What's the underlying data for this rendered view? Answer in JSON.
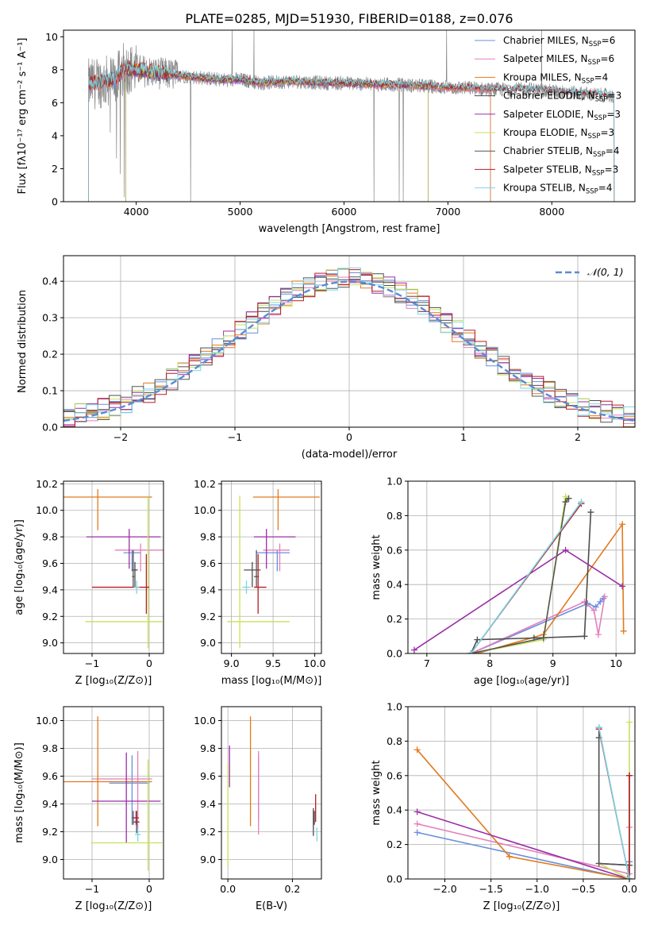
{
  "figure": {
    "title": "PLATE=0285, MJD=51930, FIBERID=0188, z=0.076"
  },
  "colors": {
    "series": [
      "#6a8fdc",
      "#e47fbd",
      "#e07b1f",
      "#4d4d4d",
      "#9a2fa6",
      "#c7e25a",
      "#555555",
      "#b41f24",
      "#7dd6e6"
    ],
    "data": "#888888",
    "gaussian": "#5b8ad6",
    "grid": "#b0b0b0"
  },
  "chart_data": [
    {
      "id": "spectrum",
      "type": "line",
      "title": "PLATE=0285, MJD=51930, FIBERID=0188, z=0.076",
      "xlabel": "wavelength [Angstrom, rest frame]",
      "ylabel": "Flux [fλ10⁻¹⁷ erg cm⁻² s⁻¹ A⁻¹]",
      "xlim": [
        3300,
        8800
      ],
      "ylim": [
        0,
        10.4
      ],
      "xticks": [
        4000,
        5000,
        6000,
        7000,
        8000
      ],
      "yticks": [
        0,
        2,
        4,
        6,
        8,
        10
      ],
      "grid": false,
      "legend_position": "right",
      "legend": [
        {
          "label": "Chabrier MILES, N",
          "sub": "SSP",
          "suffix": "=6"
        },
        {
          "label": "Salpeter MILES, N",
          "sub": "SSP",
          "suffix": "=6"
        },
        {
          "label": "Kroupa MILES, N",
          "sub": "SSP",
          "suffix": "=4"
        },
        {
          "label": "Chabrier ELODIE, N",
          "sub": "SSP",
          "suffix": "=3"
        },
        {
          "label": "Salpeter ELODIE, N",
          "sub": "SSP",
          "suffix": "=3"
        },
        {
          "label": "Kroupa ELODIE, N",
          "sub": "SSP",
          "suffix": "=3"
        },
        {
          "label": "Chabrier STELIB, N",
          "sub": "SSP",
          "suffix": "=4"
        },
        {
          "label": "Salpeter STELIB, N",
          "sub": "SSP",
          "suffix": "=3"
        },
        {
          "label": "Kroupa STELIB, N",
          "sub": "SSP",
          "suffix": "=4"
        }
      ],
      "continuum": {
        "x": [
          3550,
          3700,
          3800,
          3900,
          4000,
          4200,
          4500,
          4800,
          5000,
          5200,
          5500,
          5800,
          6000,
          6300,
          6500,
          6800,
          7000,
          7200,
          7400,
          7600,
          7800,
          8000,
          8200,
          8400,
          8600
        ],
        "y": [
          7.1,
          7.3,
          7.4,
          8.1,
          8.0,
          7.8,
          7.6,
          7.4,
          7.4,
          7.2,
          7.3,
          7.2,
          7.2,
          7.1,
          7.1,
          7.0,
          6.9,
          6.9,
          6.8,
          6.8,
          6.8,
          6.7,
          6.6,
          6.5,
          6.4
        ]
      },
      "model_ranges": [
        [
          3540,
          7410
        ],
        [
          3540,
          7410
        ],
        [
          3540,
          7410
        ],
        [
          3900,
          6810
        ],
        [
          3900,
          6810
        ],
        [
          3900,
          6810
        ],
        [
          3540,
          8600
        ],
        [
          3540,
          8600
        ],
        [
          3540,
          8600
        ]
      ],
      "data_range": [
        3540,
        8600
      ]
    },
    {
      "id": "residuals",
      "type": "histogram",
      "xlabel": "(data-model)/error",
      "ylabel": "Normed distribution",
      "xlim": [
        -2.5,
        2.5
      ],
      "ylim": [
        0,
        0.47
      ],
      "xticks": [
        -2,
        -1,
        0,
        1,
        2
      ],
      "yticks": [
        0.0,
        0.1,
        0.2,
        0.3,
        0.4
      ],
      "grid": true,
      "legend_position": "upper right",
      "gaussian_label": "𝒩(0, 1)",
      "bin_width": 0.1,
      "bin_start": -2.5
    },
    {
      "id": "age-vs-Z",
      "type": "errorbar",
      "xlabel": "Z [log₁₀(Z/Z⊙)]",
      "ylabel": "age  [log₁₀(age/yr)]",
      "xlim": [
        -1.5,
        0.25
      ],
      "ylim": [
        8.92,
        10.22
      ],
      "xticks": [
        -1,
        0
      ],
      "yticks": [
        9.0,
        9.2,
        9.4,
        9.6,
        9.8,
        10.0,
        10.2
      ],
      "grid": true,
      "points": [
        {
          "series": 0,
          "x": -0.3,
          "xerr": [
            0.15,
            0.15
          ],
          "y": 9.68,
          "yerr": [
            0.14,
            0.02
          ]
        },
        {
          "series": 1,
          "x": -0.15,
          "xerr": [
            0.45,
            0.45
          ],
          "y": 9.7,
          "yerr": [
            0.16,
            0.05
          ]
        },
        {
          "series": 2,
          "x": -0.9,
          "xerr": [
            0.6,
            0.95
          ],
          "y": 10.1,
          "yerr": [
            0.25,
            0.06
          ]
        },
        {
          "series": 3,
          "x": -0.25,
          "xerr": [
            0.05,
            0.05
          ],
          "y": 9.55,
          "yerr": [
            0.13,
            0.06
          ]
        },
        {
          "series": 4,
          "x": -0.35,
          "xerr": [
            0.75,
            0.55
          ],
          "y": 9.8,
          "yerr": [
            0.24,
            0.06
          ]
        },
        {
          "series": 5,
          "x": -0.02,
          "xerr": [
            1.1,
            0.25
          ],
          "y": 9.16,
          "yerr": [
            0.2,
            0.95
          ]
        },
        {
          "series": 6,
          "x": -0.28,
          "xerr": [
            0.02,
            0.02
          ],
          "y": 9.5,
          "yerr": [
            0.08,
            0.2
          ]
        },
        {
          "series": 7,
          "x": -0.05,
          "xerr": [
            0.95,
            0.05
          ],
          "y": 9.42,
          "yerr": [
            0.2,
            0.25
          ]
        },
        {
          "series": 8,
          "x": -0.22,
          "xerr": [
            0.05,
            0.05
          ],
          "y": 9.42,
          "yerr": [
            0.05,
            0.05
          ]
        }
      ]
    },
    {
      "id": "age-vs-mass",
      "type": "errorbar",
      "xlabel": "mass [log₁₀(M/M⊙)]",
      "ylabel": "",
      "xlim": [
        8.88,
        10.08
      ],
      "ylim": [
        8.92,
        10.22
      ],
      "xticks": [
        9.0,
        9.5,
        10.0
      ],
      "yticks": [
        9.0,
        9.2,
        9.4,
        9.6,
        9.8,
        10.0,
        10.2
      ],
      "grid": true,
      "points": [
        {
          "series": 0,
          "x": 9.55,
          "xerr": [
            0.25,
            0.15
          ],
          "y": 9.68,
          "yerr": [
            0.14,
            0.02
          ]
        },
        {
          "series": 1,
          "x": 9.58,
          "xerr": [
            0.2,
            0.12
          ],
          "y": 9.7,
          "yerr": [
            0.16,
            0.05
          ]
        },
        {
          "series": 2,
          "x": 9.56,
          "xerr": [
            0.3,
            0.5
          ],
          "y": 10.1,
          "yerr": [
            0.25,
            0.06
          ]
        },
        {
          "series": 3,
          "x": 9.25,
          "xerr": [
            0.1,
            0.1
          ],
          "y": 9.55,
          "yerr": [
            0.13,
            0.06
          ]
        },
        {
          "series": 4,
          "x": 9.42,
          "xerr": [
            0.15,
            0.35
          ],
          "y": 9.8,
          "yerr": [
            0.24,
            0.06
          ]
        },
        {
          "series": 5,
          "x": 9.1,
          "xerr": [
            0.15,
            0.6
          ],
          "y": 9.16,
          "yerr": [
            0.2,
            0.95
          ]
        },
        {
          "series": 6,
          "x": 9.3,
          "xerr": [
            0.03,
            0.03
          ],
          "y": 9.5,
          "yerr": [
            0.08,
            0.2
          ]
        },
        {
          "series": 7,
          "x": 9.32,
          "xerr": [
            0.05,
            0.1
          ],
          "y": 9.42,
          "yerr": [
            0.2,
            0.25
          ]
        },
        {
          "series": 8,
          "x": 9.18,
          "xerr": [
            0.05,
            0.05
          ],
          "y": 9.42,
          "yerr": [
            0.05,
            0.05
          ]
        }
      ]
    },
    {
      "id": "weight-vs-age",
      "type": "line",
      "xlabel": "age  [log₁₀(age/yr)]",
      "ylabel": "mass weight",
      "xlim": [
        6.7,
        10.3
      ],
      "ylim": [
        0,
        1.0
      ],
      "xticks": [
        7,
        8,
        9,
        10
      ],
      "yticks": [
        0.0,
        0.2,
        0.4,
        0.6,
        0.8,
        1.0
      ],
      "grid": true,
      "series": [
        {
          "x": [
            7.7,
            9.55,
            9.68,
            9.75,
            9.8
          ],
          "y": [
            0.0,
            0.29,
            0.27,
            0.3,
            0.32
          ]
        },
        {
          "x": [
            7.7,
            9.5,
            9.65,
            9.72,
            9.82
          ],
          "y": [
            0.0,
            0.3,
            0.25,
            0.11,
            0.33
          ]
        },
        {
          "x": [
            7.8,
            8.85,
            10.1,
            10.12
          ],
          "y": [
            0.0,
            0.11,
            0.75,
            0.13
          ]
        },
        {
          "x": [
            7.7,
            7.8,
            8.7,
            9.5,
            9.6
          ],
          "y": [
            0.0,
            0.08,
            0.09,
            0.1,
            0.82
          ]
        },
        {
          "x": [
            6.8,
            9.2,
            10.1
          ],
          "y": [
            0.02,
            0.6,
            0.39
          ]
        },
        {
          "x": [
            7.7,
            8.85,
            9.2,
            9.22
          ],
          "y": [
            0.0,
            0.08,
            0.91,
            0.9
          ]
        },
        {
          "x": [
            7.7,
            8.85,
            9.2,
            9.25
          ],
          "y": [
            0.0,
            0.09,
            0.88,
            0.9
          ]
        },
        {
          "x": [
            7.7,
            9.45
          ],
          "y": [
            0.0,
            0.87
          ]
        },
        {
          "x": [
            7.7,
            9.45
          ],
          "y": [
            0.0,
            0.88
          ]
        }
      ]
    },
    {
      "id": "mass-vs-Z",
      "type": "errorbar",
      "xlabel": "Z [log₁₀(Z/Z⊙)]",
      "ylabel": "mass [log₁₀(M/M⊙)]",
      "xlim": [
        -1.5,
        0.25
      ],
      "ylim": [
        8.86,
        10.1
      ],
      "xticks": [
        -1,
        0
      ],
      "yticks": [
        9.0,
        9.2,
        9.4,
        9.6,
        9.8,
        10.0
      ],
      "grid": true,
      "points": [
        {
          "series": 0,
          "x": -0.3,
          "xerr": [
            0.4,
            0.3
          ],
          "y": 9.55,
          "yerr": [
            0.3,
            0.2
          ]
        },
        {
          "series": 1,
          "x": -0.2,
          "xerr": [
            0.8,
            0.25
          ],
          "y": 9.58,
          "yerr": [
            0.4,
            0.2
          ]
        },
        {
          "series": 2,
          "x": -0.9,
          "xerr": [
            0.6,
            0.95
          ],
          "y": 9.56,
          "yerr": [
            0.32,
            0.47
          ]
        },
        {
          "series": 3,
          "x": -0.22,
          "xerr": [
            0.05,
            0.05
          ],
          "y": 9.27,
          "yerr": [
            0.08,
            0.08
          ]
        },
        {
          "series": 4,
          "x": -0.4,
          "xerr": [
            0.6,
            0.6
          ],
          "y": 9.42,
          "yerr": [
            0.3,
            0.35
          ]
        },
        {
          "series": 5,
          "x": -0.02,
          "xerr": [
            1.0,
            0.25
          ],
          "y": 9.12,
          "yerr": [
            0.2,
            0.6
          ]
        },
        {
          "series": 6,
          "x": -0.28,
          "xerr": [
            0.02,
            0.02
          ],
          "y": 9.3,
          "yerr": [
            0.05,
            0.05
          ]
        },
        {
          "series": 7,
          "x": -0.23,
          "xerr": [
            0.05,
            0.05
          ],
          "y": 9.3,
          "yerr": [
            0.05,
            0.05
          ]
        },
        {
          "series": 8,
          "x": -0.2,
          "xerr": [
            0.05,
            0.05
          ],
          "y": 9.18,
          "yerr": [
            0.05,
            0.05
          ]
        }
      ]
    },
    {
      "id": "mass-vs-ebv",
      "type": "errorbar",
      "xlabel": "E(B-V)",
      "ylabel": "",
      "xlim": [
        -0.02,
        0.29
      ],
      "ylim": [
        8.86,
        10.1
      ],
      "xticks": [
        0.0,
        0.2
      ],
      "yticks": [
        9.0,
        9.2,
        9.4,
        9.6,
        9.8,
        10.0
      ],
      "grid": true,
      "points": [
        {
          "series": 0,
          "x": 0.095,
          "xerr": [
            0.0,
            0.0
          ],
          "y": 9.55,
          "yerr": [
            0.27,
            0.2
          ]
        },
        {
          "series": 1,
          "x": 0.095,
          "xerr": [
            0.0,
            0.0
          ],
          "y": 9.58,
          "yerr": [
            0.4,
            0.2
          ]
        },
        {
          "series": 2,
          "x": 0.07,
          "xerr": [
            0.0,
            0.0
          ],
          "y": 9.56,
          "yerr": [
            0.32,
            0.47
          ]
        },
        {
          "series": 3,
          "x": 0.265,
          "xerr": [
            0.0,
            0.0
          ],
          "y": 9.27,
          "yerr": [
            0.1,
            0.1
          ]
        },
        {
          "series": 4,
          "x": 0.005,
          "xerr": [
            0.0,
            0.0
          ],
          "y": 9.62,
          "yerr": [
            0.1,
            0.2
          ]
        },
        {
          "series": 5,
          "x": 0.0,
          "xerr": [
            0.0,
            0.0
          ],
          "y": 9.3,
          "yerr": [
            0.35,
            0.4
          ]
        },
        {
          "series": 6,
          "x": 0.268,
          "xerr": [
            0.0,
            0.0
          ],
          "y": 9.3,
          "yerr": [
            0.05,
            0.05
          ]
        },
        {
          "series": 7,
          "x": 0.272,
          "xerr": [
            0.0,
            0.0
          ],
          "y": 9.37,
          "yerr": [
            0.1,
            0.1
          ]
        },
        {
          "series": 8,
          "x": 0.276,
          "xerr": [
            0.0,
            0.0
          ],
          "y": 9.18,
          "yerr": [
            0.05,
            0.05
          ]
        }
      ]
    },
    {
      "id": "weight-vs-Z",
      "type": "line",
      "xlabel": "Z [log₁₀(Z/Z⊙)]",
      "ylabel": "mass weight",
      "xlim": [
        -2.4,
        0.06
      ],
      "ylim": [
        0,
        1.0
      ],
      "xticks": [
        -2.0,
        -1.5,
        -1.0,
        -0.5,
        0.0
      ],
      "yticks": [
        0.0,
        0.2,
        0.4,
        0.6,
        0.8,
        1.0
      ],
      "grid": true,
      "series": [
        {
          "x": [
            -2.3,
            -0.02,
            0.0
          ],
          "y": [
            0.27,
            0.0,
            0.1
          ]
        },
        {
          "x": [
            -2.3,
            0.0,
            0.0
          ],
          "y": [
            0.32,
            0.03,
            0.3
          ]
        },
        {
          "x": [
            -2.3,
            -1.3,
            0.0
          ],
          "y": [
            0.75,
            0.13,
            0.0
          ]
        },
        {
          "x": [
            -0.33,
            -0.33,
            0.0
          ],
          "y": [
            0.82,
            0.09,
            0.08
          ]
        },
        {
          "x": [
            -2.3,
            0.0,
            0.0
          ],
          "y": [
            0.39,
            0.0,
            0.6
          ]
        },
        {
          "x": [
            -0.33,
            0.0,
            0.0
          ],
          "y": [
            0.09,
            0.0,
            0.91
          ]
        },
        {
          "x": [
            -0.33,
            -0.33,
            0.0
          ],
          "y": [
            0.88,
            0.09,
            0.08
          ]
        },
        {
          "x": [
            -0.33,
            0.0,
            0.0
          ],
          "y": [
            0.87,
            0.0,
            0.6
          ]
        },
        {
          "x": [
            -0.33,
            0.0
          ],
          "y": [
            0.88,
            0.0
          ]
        }
      ]
    }
  ]
}
